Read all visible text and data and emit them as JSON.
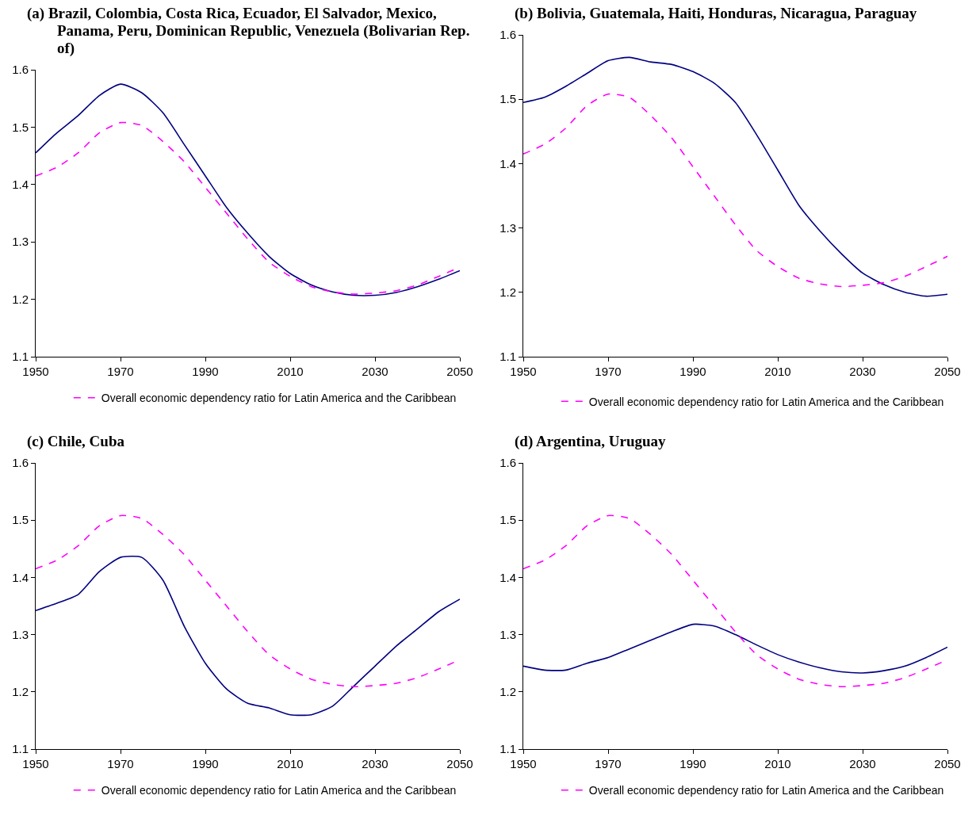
{
  "chart_data": [
    {
      "type": "line",
      "title": "(a)  Brazil, Colombia, Costa Rica, Ecuador, El Salvador, Mexico, Panama, Peru, Dominican Republic, Venezuela (Bolivarian Rep. of)",
      "x": [
        1950,
        1955,
        1960,
        1965,
        1970,
        1975,
        1980,
        1985,
        1990,
        1995,
        2000,
        2005,
        2010,
        2015,
        2020,
        2025,
        2030,
        2035,
        2040,
        2045,
        2050
      ],
      "xlim": [
        1950,
        2050
      ],
      "xticks": [
        1950,
        1970,
        1990,
        2010,
        2030,
        2050
      ],
      "ylim": [
        1.1,
        1.6
      ],
      "yticks": [
        1.1,
        1.2,
        1.3,
        1.4,
        1.5,
        1.6
      ],
      "legend": "bottom",
      "series": [
        {
          "color": "#000080",
          "line_style": "solid",
          "values": [
            1.455,
            1.49,
            1.52,
            1.555,
            1.575,
            1.56,
            1.525,
            1.47,
            1.415,
            1.36,
            1.315,
            1.275,
            1.245,
            1.225,
            1.213,
            1.207,
            1.207,
            1.212,
            1.222,
            1.235,
            1.25
          ]
        },
        {
          "name": "Overall economic dependency ratio for Latin America and the Caribbean",
          "color": "#ff00ff",
          "line_style": "dashed",
          "values": [
            1.415,
            1.43,
            1.455,
            1.49,
            1.508,
            1.503,
            1.475,
            1.44,
            1.395,
            1.35,
            1.305,
            1.265,
            1.24,
            1.222,
            1.213,
            1.209,
            1.211,
            1.215,
            1.225,
            1.24,
            1.256
          ]
        }
      ]
    },
    {
      "type": "line",
      "title": "(b)  Bolivia, Guatemala, Haiti, Honduras, Nicaragua, Paraguay",
      "x": [
        1950,
        1955,
        1960,
        1965,
        1970,
        1975,
        1980,
        1985,
        1990,
        1995,
        2000,
        2005,
        2010,
        2015,
        2020,
        2025,
        2030,
        2035,
        2040,
        2045,
        2050
      ],
      "xlim": [
        1950,
        2050
      ],
      "xticks": [
        1950,
        1970,
        1990,
        2010,
        2030,
        2050
      ],
      "ylim": [
        1.1,
        1.6
      ],
      "yticks": [
        1.1,
        1.2,
        1.3,
        1.4,
        1.5,
        1.6
      ],
      "legend": "bottom",
      "series": [
        {
          "color": "#000080",
          "line_style": "solid",
          "values": [
            1.495,
            1.503,
            1.52,
            1.54,
            1.56,
            1.565,
            1.558,
            1.554,
            1.543,
            1.525,
            1.495,
            1.445,
            1.39,
            1.335,
            1.295,
            1.26,
            1.23,
            1.212,
            1.2,
            1.194,
            1.197
          ]
        },
        {
          "name": "Overall economic dependency ratio for Latin America and the Caribbean",
          "color": "#ff00ff",
          "line_style": "dashed",
          "values": [
            1.415,
            1.43,
            1.455,
            1.49,
            1.508,
            1.503,
            1.475,
            1.44,
            1.395,
            1.35,
            1.305,
            1.265,
            1.24,
            1.222,
            1.213,
            1.209,
            1.211,
            1.215,
            1.225,
            1.24,
            1.256
          ]
        }
      ]
    },
    {
      "type": "line",
      "title": "(c) Chile, Cuba",
      "x": [
        1950,
        1955,
        1960,
        1965,
        1970,
        1975,
        1980,
        1985,
        1990,
        1995,
        2000,
        2005,
        2010,
        2015,
        2020,
        2025,
        2030,
        2035,
        2040,
        2045,
        2050
      ],
      "xlim": [
        1950,
        2050
      ],
      "xticks": [
        1950,
        1970,
        1990,
        2010,
        2030,
        2050
      ],
      "ylim": [
        1.1,
        1.6
      ],
      "yticks": [
        1.1,
        1.2,
        1.3,
        1.4,
        1.5,
        1.6
      ],
      "legend": "bottom",
      "series": [
        {
          "color": "#000080",
          "line_style": "solid",
          "values": [
            1.342,
            1.355,
            1.37,
            1.41,
            1.435,
            1.435,
            1.395,
            1.315,
            1.25,
            1.205,
            1.18,
            1.172,
            1.16,
            1.16,
            1.175,
            1.21,
            1.245,
            1.28,
            1.31,
            1.34,
            1.362
          ]
        },
        {
          "name": "Overall economic dependency ratio for Latin America and the Caribbean",
          "color": "#ff00ff",
          "line_style": "dashed",
          "values": [
            1.415,
            1.43,
            1.455,
            1.49,
            1.508,
            1.503,
            1.475,
            1.44,
            1.395,
            1.35,
            1.305,
            1.265,
            1.24,
            1.222,
            1.213,
            1.209,
            1.211,
            1.215,
            1.225,
            1.24,
            1.256
          ]
        }
      ]
    },
    {
      "type": "line",
      "title": "(d) Argentina, Uruguay",
      "x": [
        1950,
        1955,
        1960,
        1965,
        1970,
        1975,
        1980,
        1985,
        1990,
        1995,
        2000,
        2005,
        2010,
        2015,
        2020,
        2025,
        2030,
        2035,
        2040,
        2045,
        2050
      ],
      "xlim": [
        1950,
        2050
      ],
      "xticks": [
        1950,
        1970,
        1990,
        2010,
        2030,
        2050
      ],
      "ylim": [
        1.1,
        1.6
      ],
      "yticks": [
        1.1,
        1.2,
        1.3,
        1.4,
        1.5,
        1.6
      ],
      "legend": "bottom",
      "series": [
        {
          "color": "#000080",
          "line_style": "solid",
          "values": [
            1.245,
            1.238,
            1.238,
            1.25,
            1.26,
            1.275,
            1.29,
            1.305,
            1.318,
            1.315,
            1.3,
            1.282,
            1.265,
            1.252,
            1.242,
            1.235,
            1.233,
            1.237,
            1.245,
            1.26,
            1.278
          ]
        },
        {
          "name": "Overall economic dependency ratio for Latin America and the Caribbean",
          "color": "#ff00ff",
          "line_style": "dashed",
          "values": [
            1.415,
            1.43,
            1.455,
            1.49,
            1.508,
            1.503,
            1.475,
            1.44,
            1.395,
            1.35,
            1.305,
            1.265,
            1.24,
            1.222,
            1.213,
            1.209,
            1.211,
            1.215,
            1.225,
            1.24,
            1.256
          ]
        }
      ]
    }
  ]
}
